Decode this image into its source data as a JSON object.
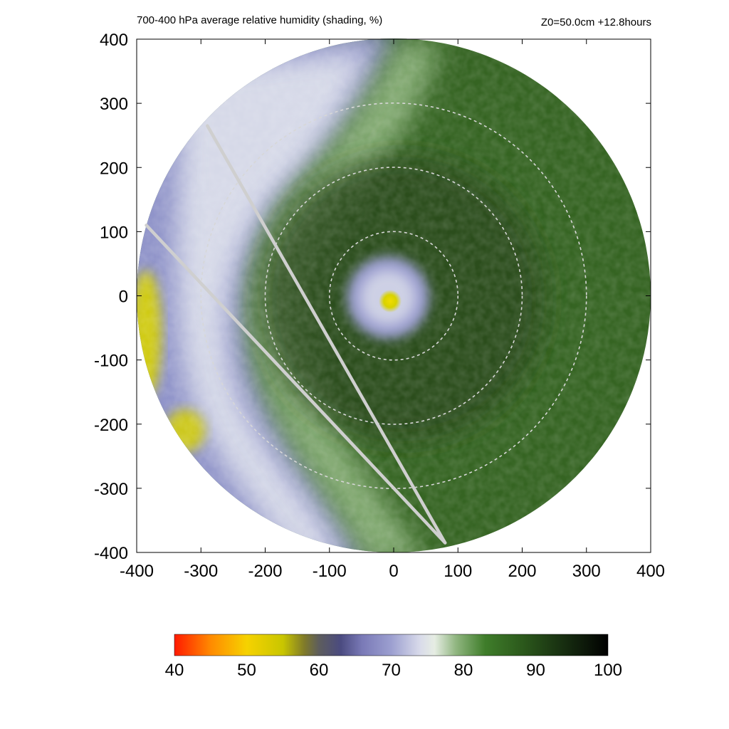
{
  "title": "700-400 hPa average relative humidity (shading, %)",
  "subtitle": "Z0=50.0cm  +12.8hours",
  "colors": {
    "field_bands": [
      "#2a4a1c",
      "#2f5a1f",
      "#356422",
      "#3a6a24",
      "#8fb57f",
      "#f0f2ee",
      "#8f93c9",
      "#d8d200"
    ],
    "ring": "#d7d7d7",
    "track": "#cfcfcf"
  },
  "chart_data": {
    "type": "heatmap",
    "title": "700-400 hPa average relative humidity (shading, %)",
    "subtitle": "Z0=50.0cm  +12.8hours",
    "xlim": [
      -400,
      400
    ],
    "ylim": [
      -400,
      400
    ],
    "x_ticks": [
      -400,
      -300,
      -200,
      -100,
      0,
      100,
      200,
      300,
      400
    ],
    "y_ticks": [
      -400,
      -300,
      -200,
      -100,
      0,
      100,
      200,
      300,
      400
    ],
    "x_tick_labels": [
      "-400",
      "-300",
      "-200",
      "-100",
      "0",
      "100",
      "200",
      "300",
      "400"
    ],
    "y_tick_labels": [
      "400",
      "300",
      "200",
      "100",
      "0",
      "-100",
      "-200",
      "-300",
      "-400"
    ],
    "domain_radius": 400,
    "range_rings_radii": [
      100,
      200,
      300
    ],
    "center_marker": [
      -5,
      -10
    ],
    "track_lines": [
      {
        "from": [
          -385,
          110
        ],
        "to": [
          80,
          -385
        ]
      },
      {
        "from": [
          -290,
          265
        ],
        "to": [
          80,
          -385
        ]
      }
    ],
    "colorbar": {
      "min": 40,
      "max": 100,
      "ticks": [
        40,
        50,
        60,
        70,
        80,
        90,
        100
      ],
      "tick_labels": [
        "40",
        "50",
        "60",
        "70",
        "80",
        "90",
        "100"
      ],
      "stops": [
        {
          "value": 40,
          "color": "#ff1a00"
        },
        {
          "value": 45,
          "color": "#ff8a00"
        },
        {
          "value": 50,
          "color": "#f6d200"
        },
        {
          "value": 55,
          "color": "#c9c600"
        },
        {
          "value": 58,
          "color": "#7f7a2a"
        },
        {
          "value": 60,
          "color": "#5d5d5d"
        },
        {
          "value": 63,
          "color": "#4b4b80"
        },
        {
          "value": 66,
          "color": "#7a7ab7"
        },
        {
          "value": 70,
          "color": "#9c9fd0"
        },
        {
          "value": 74,
          "color": "#d9dbea"
        },
        {
          "value": 76,
          "color": "#e6ede3"
        },
        {
          "value": 79,
          "color": "#8fb57f"
        },
        {
          "value": 83,
          "color": "#3f7d2a"
        },
        {
          "value": 88,
          "color": "#2c5a1c"
        },
        {
          "value": 93,
          "color": "#1a3412"
        },
        {
          "value": 97,
          "color": "#0c1709"
        },
        {
          "value": 100,
          "color": "#000000"
        }
      ]
    }
  }
}
